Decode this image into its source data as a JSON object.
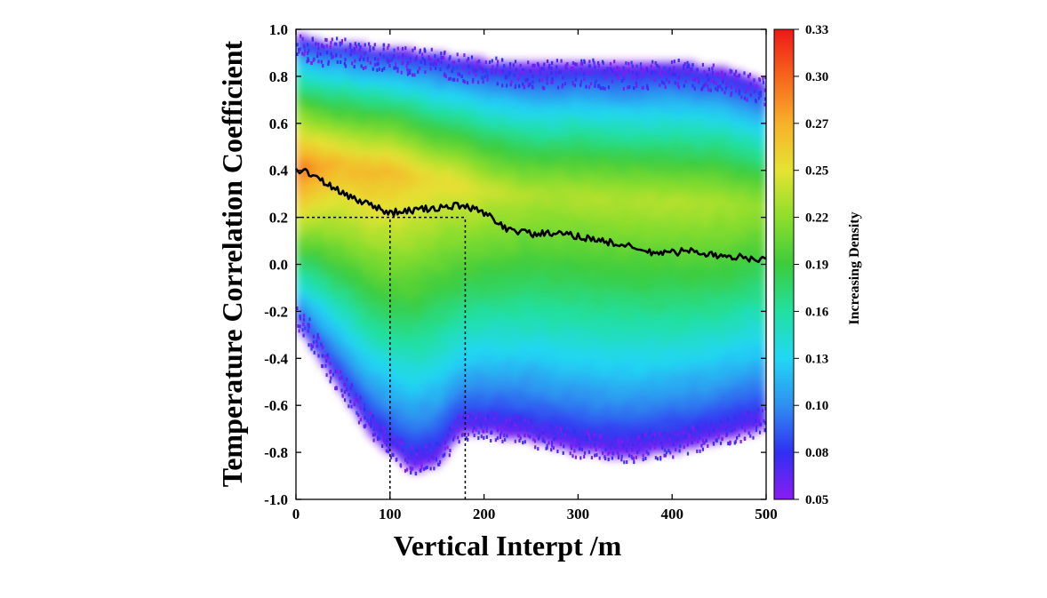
{
  "chart_data": {
    "type": "heatmap",
    "title": "",
    "xlabel": "Vertical Interpt /m",
    "ylabel": "Temperature Correlation Coefficient",
    "xlim": [
      0,
      500
    ],
    "ylim": [
      -1.0,
      1.0
    ],
    "x_ticks": [
      "0",
      "100",
      "200",
      "300",
      "400",
      "500"
    ],
    "y_ticks": [
      "1.0",
      "0.8",
      "0.6",
      "0.4",
      "0.2",
      "0.0",
      "-0.2",
      "-0.4",
      "-0.6",
      "-0.8",
      "-1.0"
    ],
    "colorbar": {
      "label": "Increasing Density",
      "min": 0.05,
      "max": 0.33,
      "ticks": [
        "0.33",
        "0.30",
        "0.27",
        "0.25",
        "0.22",
        "0.19",
        "0.16",
        "0.13",
        "0.10",
        "0.08",
        "0.05"
      ],
      "colors": [
        "#8a1cf2",
        "#3030f2",
        "#2f8ff0",
        "#22d7f5",
        "#22e0a0",
        "#3ccc3c",
        "#8ede2c",
        "#e5e332",
        "#f7b02a",
        "#f6651c",
        "#ee1818"
      ]
    },
    "density_bands": {
      "x": [
        0,
        25,
        50,
        75,
        100,
        125,
        150,
        175,
        200,
        250,
        300,
        350,
        400,
        450,
        500
      ],
      "upper_edge": [
        0.98,
        0.95,
        0.95,
        0.93,
        0.92,
        0.91,
        0.9,
        0.88,
        0.87,
        0.85,
        0.86,
        0.85,
        0.86,
        0.84,
        0.78
      ],
      "lower_edge": [
        -0.25,
        -0.4,
        -0.55,
        -0.7,
        -0.8,
        -0.88,
        -0.85,
        -0.72,
        -0.72,
        -0.75,
        -0.8,
        -0.82,
        -0.8,
        -0.75,
        -0.7
      ],
      "peak_center": [
        0.4,
        0.42,
        0.42,
        0.4,
        0.4,
        0.38,
        0.36,
        0.35,
        0.32,
        0.3,
        0.3,
        0.28,
        0.27,
        0.26,
        0.25
      ],
      "peak_density": [
        0.3,
        0.28,
        0.27,
        0.27,
        0.27,
        0.26,
        0.25,
        0.25,
        0.24,
        0.23,
        0.23,
        0.23,
        0.23,
        0.23,
        0.22
      ]
    },
    "series": [
      {
        "x": [
          0,
          10,
          25,
          50,
          75,
          100,
          125,
          150,
          175,
          200,
          225,
          250,
          275,
          300,
          325,
          350,
          375,
          400,
          425,
          450,
          475,
          500
        ],
        "values": [
          0.4,
          0.4,
          0.36,
          0.3,
          0.26,
          0.22,
          0.23,
          0.24,
          0.25,
          0.22,
          0.15,
          0.13,
          0.13,
          0.12,
          0.1,
          0.08,
          0.05,
          0.05,
          0.06,
          0.03,
          0.03,
          0.02
        ]
      }
    ],
    "reference_lines": [
      {
        "orientation": "horizontal",
        "y": 0.2,
        "x_from": 0,
        "x_to": 180
      },
      {
        "orientation": "vertical",
        "x": 100,
        "y_from": -1.0,
        "y_to": 0.2
      },
      {
        "orientation": "vertical",
        "x": 180,
        "y_from": -1.0,
        "y_to": 0.2
      }
    ]
  }
}
